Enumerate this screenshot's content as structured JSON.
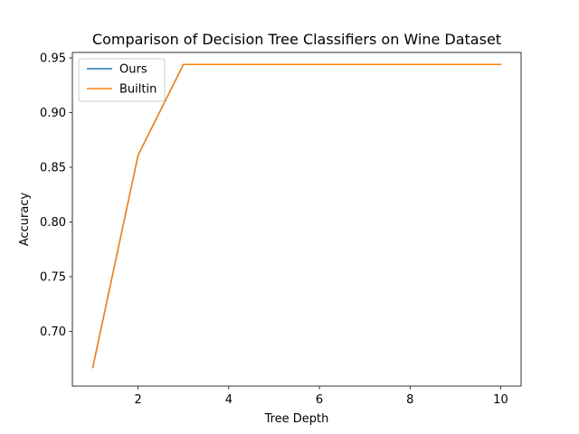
{
  "chart_data": {
    "type": "line",
    "title": "Comparison of Decision Tree Classifiers on Wine Dataset",
    "xlabel": "Tree Depth",
    "ylabel": "Accuracy",
    "x": [
      1,
      2,
      3,
      4,
      5,
      6,
      7,
      8,
      9,
      10
    ],
    "xlim": [
      0.55,
      10.45
    ],
    "ylim": [
      0.65,
      0.955
    ],
    "xticks": [
      2,
      4,
      6,
      8,
      10
    ],
    "xtick_labels": [
      "2",
      "4",
      "6",
      "8",
      "10"
    ],
    "yticks": [
      0.7,
      0.75,
      0.8,
      0.85,
      0.9,
      0.95
    ],
    "ytick_labels": [
      "0.70",
      "0.75",
      "0.80",
      "0.85",
      "0.90",
      "0.95"
    ],
    "grid": false,
    "legend_position": "top-left",
    "series": [
      {
        "name": "Ours",
        "color": "#1f77b4",
        "values": [
          0.667,
          0.861,
          0.944,
          0.944,
          0.944,
          0.944,
          0.944,
          0.944,
          0.944,
          0.944
        ]
      },
      {
        "name": "Builtin",
        "color": "#ff7f0e",
        "values": [
          0.667,
          0.861,
          0.944,
          0.944,
          0.944,
          0.944,
          0.944,
          0.944,
          0.944,
          0.944
        ]
      }
    ]
  }
}
